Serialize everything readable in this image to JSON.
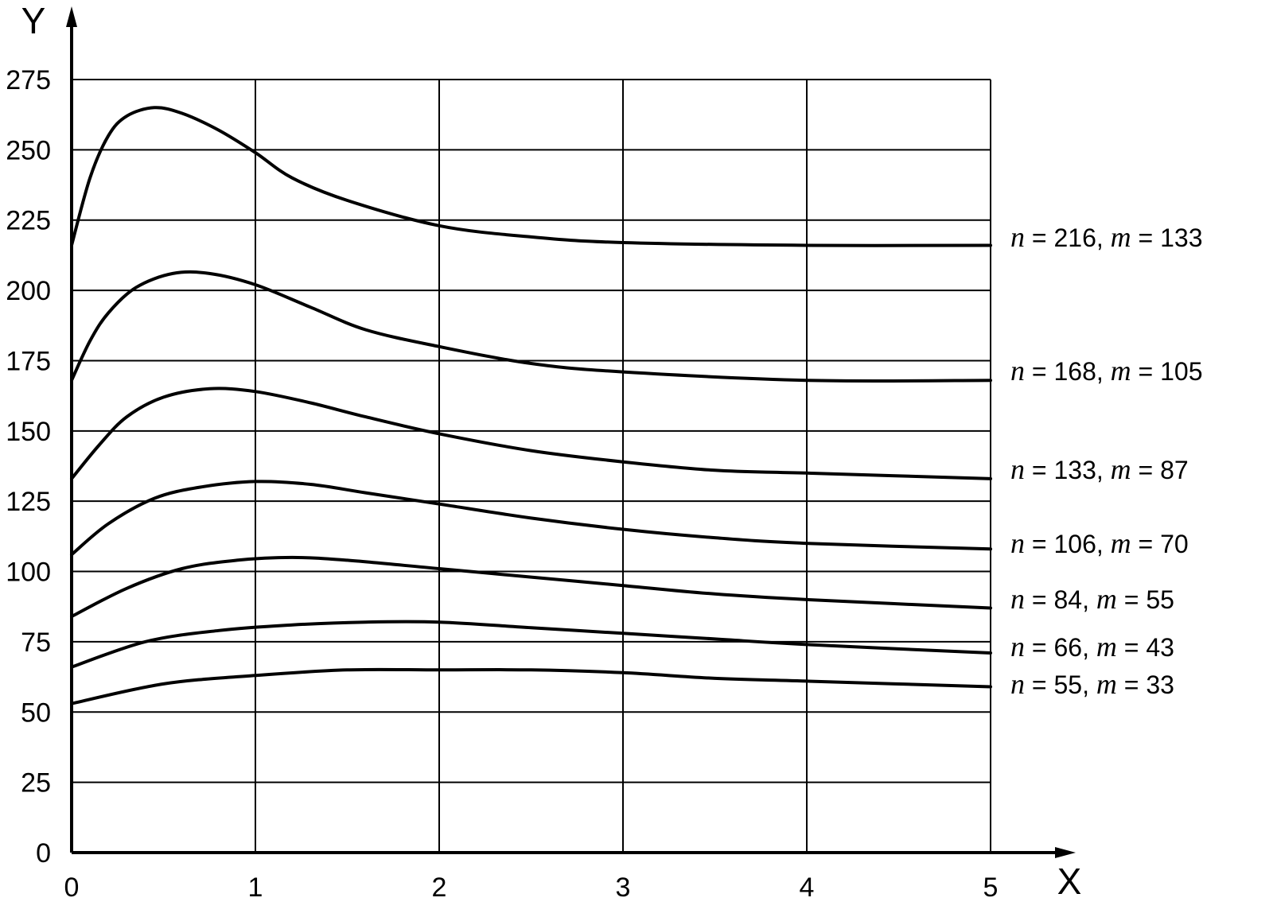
{
  "chart_data": {
    "type": "line",
    "title": "",
    "xlabel": "X",
    "ylabel": "Y",
    "xlim": [
      0,
      5
    ],
    "ylim": [
      0,
      275
    ],
    "grid": true,
    "legend": "inline-right",
    "x_ticks": [
      "0",
      "1",
      "2",
      "3",
      "4",
      "5"
    ],
    "y_ticks": [
      "0",
      "25",
      "50",
      "75",
      "100",
      "125",
      "150",
      "175",
      "200",
      "225",
      "250",
      "275"
    ],
    "series": [
      {
        "name": "n = 216, m = 133",
        "label_parts": {
          "n_var": "n",
          "n_text": " = 216, ",
          "m_var": "m",
          "m_text": " = 133"
        },
        "x": [
          0,
          0.1,
          0.2,
          0.3,
          0.45,
          0.6,
          0.8,
          1.0,
          1.2,
          1.5,
          2.0,
          2.5,
          3.0,
          4.0,
          5.0
        ],
        "y": [
          216,
          240,
          255,
          262,
          265,
          263,
          257,
          249,
          240,
          232,
          223,
          219,
          217,
          216,
          216
        ]
      },
      {
        "name": "n = 168, m = 105",
        "label_parts": {
          "n_var": "n",
          "n_text": " = 168, ",
          "m_var": "m",
          "m_text": " = 105"
        },
        "x": [
          0,
          0.1,
          0.2,
          0.35,
          0.55,
          0.75,
          1.0,
          1.3,
          1.6,
          2.0,
          2.5,
          3.0,
          4.0,
          5.0
        ],
        "y": [
          168,
          182,
          192,
          201,
          206,
          206,
          202,
          194,
          186,
          180,
          174,
          171,
          168,
          168
        ]
      },
      {
        "name": "n = 133, m = 87",
        "label_parts": {
          "n_var": "n",
          "n_text": " = 133, ",
          "m_var": "m",
          "m_text": " = 87"
        },
        "x": [
          0,
          0.15,
          0.3,
          0.5,
          0.75,
          1.0,
          1.3,
          1.6,
          2.0,
          2.5,
          3.0,
          3.5,
          4.0,
          5.0
        ],
        "y": [
          133,
          145,
          155,
          162,
          165,
          164,
          160,
          155,
          149,
          143,
          139,
          136,
          135,
          133
        ]
      },
      {
        "name": "n = 106, m = 70",
        "label_parts": {
          "n_var": "n",
          "n_text": " = 106, ",
          "m_var": "m",
          "m_text": " = 70"
        },
        "x": [
          0,
          0.2,
          0.45,
          0.7,
          1.0,
          1.3,
          1.6,
          2.0,
          2.5,
          3.0,
          3.5,
          4.0,
          5.0
        ],
        "y": [
          106,
          117,
          126,
          130,
          132,
          131,
          128,
          124,
          119,
          115,
          112,
          110,
          108
        ]
      },
      {
        "name": "n = 84, m = 55",
        "label_parts": {
          "n_var": "n",
          "n_text": " = 84, ",
          "m_var": "m",
          "m_text": " = 55"
        },
        "x": [
          0,
          0.3,
          0.6,
          0.9,
          1.2,
          1.5,
          2.0,
          2.5,
          3.0,
          3.5,
          4.0,
          5.0
        ],
        "y": [
          84,
          94,
          101,
          104,
          105,
          104,
          101,
          98,
          95,
          92,
          90,
          87
        ]
      },
      {
        "name": "n = 66, m = 43",
        "label_parts": {
          "n_var": "n",
          "n_text": " = 66, ",
          "m_var": "m",
          "m_text": " = 43"
        },
        "x": [
          0,
          0.4,
          0.8,
          1.2,
          1.6,
          2.0,
          2.5,
          3.0,
          3.5,
          4.0,
          5.0
        ],
        "y": [
          66,
          75,
          79,
          81,
          82,
          82,
          80,
          78,
          76,
          74,
          71
        ]
      },
      {
        "name": "n = 55, m = 33",
        "label_parts": {
          "n_var": "n",
          "n_text": " = 55, ",
          "m_var": "m",
          "m_text": " = 33"
        },
        "x": [
          0,
          0.5,
          1.0,
          1.5,
          2.0,
          2.5,
          3.0,
          3.5,
          4.0,
          5.0
        ],
        "y": [
          53,
          60,
          63,
          65,
          65,
          65,
          64,
          62,
          61,
          59
        ]
      }
    ]
  }
}
